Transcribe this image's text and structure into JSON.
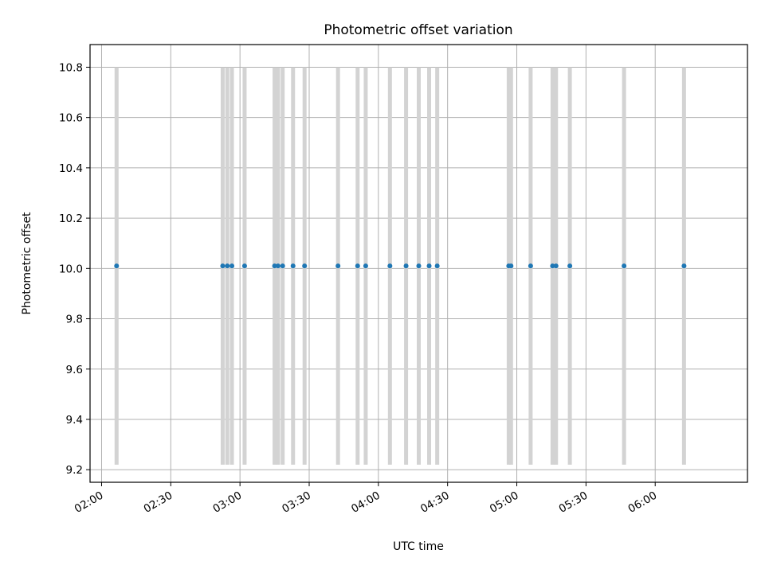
{
  "chart_data": {
    "type": "scatter",
    "title": "Photometric offset variation",
    "xlabel": "UTC time",
    "ylabel": "Photometric offset",
    "x_axis_type": "time",
    "xlim": [
      "01:55",
      "06:40"
    ],
    "ylim": [
      9.15,
      10.89
    ],
    "grid": true,
    "x_ticks": [
      "02:00",
      "02:30",
      "03:00",
      "03:30",
      "04:00",
      "04:30",
      "05:00",
      "05:30",
      "06:00"
    ],
    "y_ticks": [
      "9.2",
      "9.4",
      "9.6",
      "9.8",
      "10.0",
      "10.2",
      "10.4",
      "10.6",
      "10.8"
    ],
    "error_bar_range": [
      9.22,
      10.8
    ],
    "series": [
      {
        "marker": "dot",
        "color": "#1f77b4",
        "errorbar_color": "#d3d3d3",
        "points": [
          {
            "x": "02:06:30",
            "y": 10.01
          },
          {
            "x": "02:52:30",
            "y": 10.01
          },
          {
            "x": "02:54:30",
            "y": 10.01
          },
          {
            "x": "02:56:30",
            "y": 10.01
          },
          {
            "x": "03:02:00",
            "y": 10.01
          },
          {
            "x": "03:15:00",
            "y": 10.01
          },
          {
            "x": "03:16:30",
            "y": 10.01
          },
          {
            "x": "03:18:30",
            "y": 10.01
          },
          {
            "x": "03:23:00",
            "y": 10.01
          },
          {
            "x": "03:28:00",
            "y": 10.01
          },
          {
            "x": "03:42:30",
            "y": 10.01
          },
          {
            "x": "03:51:00",
            "y": 10.01
          },
          {
            "x": "03:54:30",
            "y": 10.01
          },
          {
            "x": "04:05:00",
            "y": 10.01
          },
          {
            "x": "04:12:00",
            "y": 10.01
          },
          {
            "x": "04:17:30",
            "y": 10.01
          },
          {
            "x": "04:22:00",
            "y": 10.01
          },
          {
            "x": "04:25:30",
            "y": 10.01
          },
          {
            "x": "04:56:30",
            "y": 10.01
          },
          {
            "x": "04:57:30",
            "y": 10.01
          },
          {
            "x": "05:06:00",
            "y": 10.01
          },
          {
            "x": "05:15:30",
            "y": 10.01
          },
          {
            "x": "05:17:00",
            "y": 10.01
          },
          {
            "x": "05:23:00",
            "y": 10.01
          },
          {
            "x": "05:46:30",
            "y": 10.01
          },
          {
            "x": "06:12:30",
            "y": 10.01
          }
        ]
      }
    ]
  }
}
